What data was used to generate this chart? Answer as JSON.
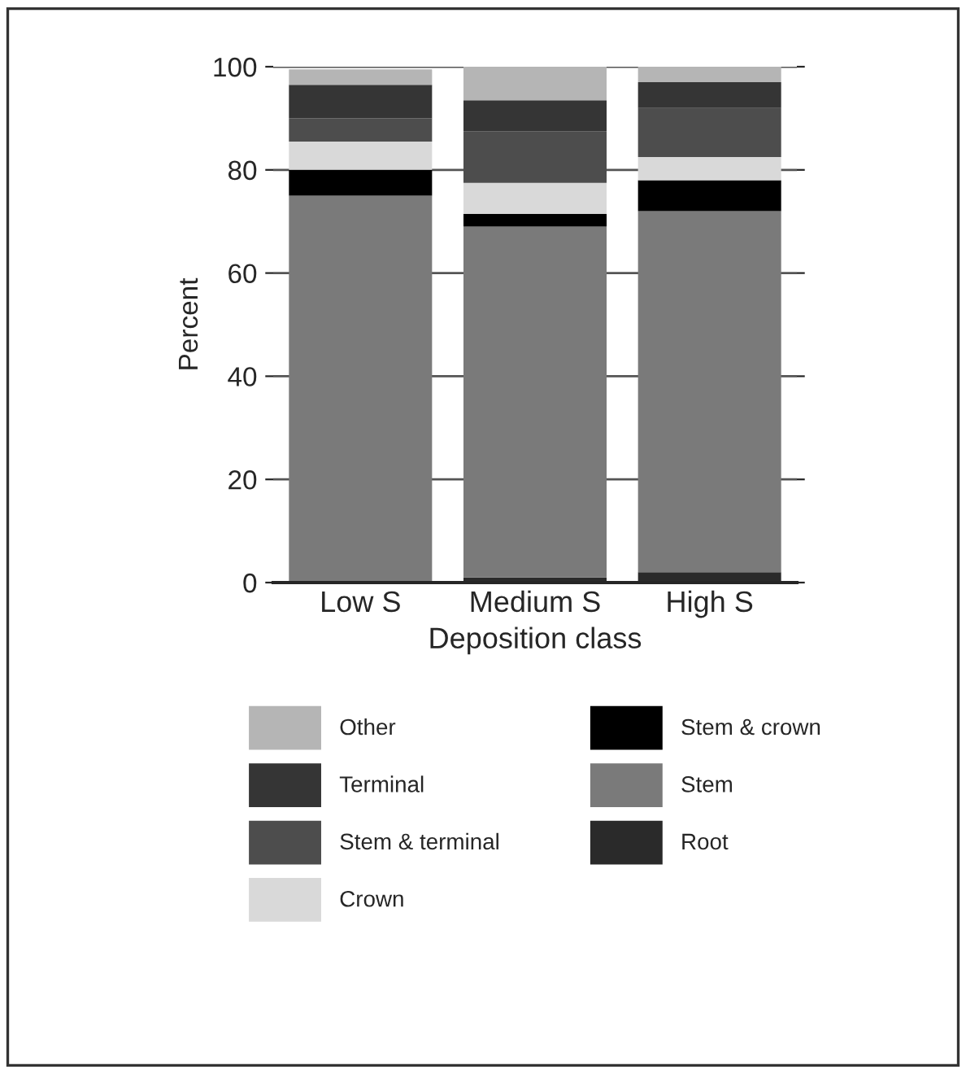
{
  "chart_data": {
    "type": "bar",
    "stacked": true,
    "xlabel": "Deposition class",
    "ylabel": "Percent",
    "categories": [
      "Low S",
      "Medium S",
      "High S"
    ],
    "series": [
      {
        "name": "Root",
        "color": "#2a2a2a",
        "values": [
          null,
          1,
          2
        ]
      },
      {
        "name": "Stem",
        "color": "#7a7a7a",
        "values": [
          75,
          68,
          70
        ]
      },
      {
        "name": "Stem & crown",
        "color": "#000000",
        "values": [
          5,
          2.5,
          6
        ]
      },
      {
        "name": "Crown",
        "color": "#d9d9d9",
        "values": [
          5.5,
          6,
          4.5
        ]
      },
      {
        "name": "Stem & terminal",
        "color": "#4d4d4d",
        "values": [
          4.5,
          10,
          9.5
        ]
      },
      {
        "name": "Terminal",
        "color": "#353535",
        "values": [
          6.5,
          6,
          5
        ]
      },
      {
        "name": "Other",
        "color": "#b5b5b5",
        "values": [
          3,
          6.5,
          3
        ]
      }
    ],
    "ylim": [
      0,
      100
    ],
    "yticks": [
      0,
      20,
      40,
      60,
      80,
      100
    ],
    "grid": "y",
    "legend": "bottom"
  }
}
